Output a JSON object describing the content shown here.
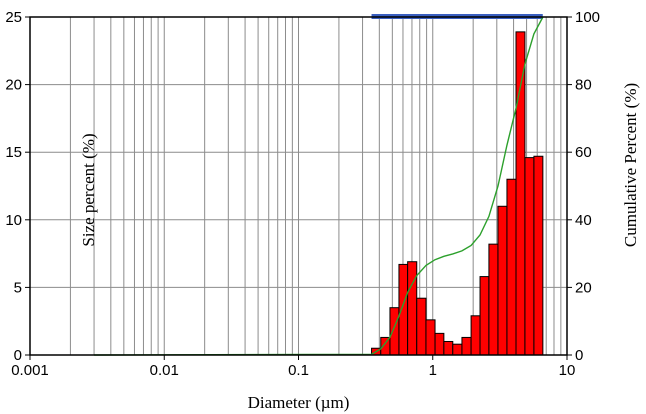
{
  "chart_data": {
    "type": "bar",
    "xlabel": "Diameter (µm)",
    "ylabel": "Size percent (%)",
    "y2label": "Cumulative Percent (%)",
    "xscale": "log",
    "xlim": [
      0.001,
      10
    ],
    "ylim": [
      0,
      25
    ],
    "y2lim": [
      0,
      100
    ],
    "x_ticks": [
      "0.001",
      "0.01",
      "0.1",
      "1",
      "10"
    ],
    "y_ticks": [
      "0",
      "5",
      "10",
      "15",
      "20",
      "25"
    ],
    "y2_ticks": [
      "0",
      "20",
      "40",
      "60",
      "80",
      "100"
    ],
    "bar_color": "#ff0000",
    "line_color": "#2ca02c",
    "range_bar_color": "#3a5fc0",
    "range_bar": [
      0.35,
      6.6
    ],
    "bins": [
      {
        "x0": 0.35,
        "x1": 0.41,
        "value": 0.5
      },
      {
        "x0": 0.41,
        "x1": 0.48,
        "value": 1.3
      },
      {
        "x0": 0.48,
        "x1": 0.56,
        "value": 3.5
      },
      {
        "x0": 0.56,
        "x1": 0.65,
        "value": 6.7
      },
      {
        "x0": 0.65,
        "x1": 0.76,
        "value": 6.9
      },
      {
        "x0": 0.76,
        "x1": 0.89,
        "value": 4.2
      },
      {
        "x0": 0.89,
        "x1": 1.04,
        "value": 2.6
      },
      {
        "x0": 1.04,
        "x1": 1.21,
        "value": 1.6
      },
      {
        "x0": 1.21,
        "x1": 1.41,
        "value": 1.0
      },
      {
        "x0": 1.41,
        "x1": 1.65,
        "value": 0.8
      },
      {
        "x0": 1.65,
        "x1": 1.93,
        "value": 1.3
      },
      {
        "x0": 1.93,
        "x1": 2.25,
        "value": 2.9
      },
      {
        "x0": 2.25,
        "x1": 2.62,
        "value": 5.8
      },
      {
        "x0": 2.62,
        "x1": 3.06,
        "value": 8.2
      },
      {
        "x0": 3.06,
        "x1": 3.57,
        "value": 11.0
      },
      {
        "x0": 3.57,
        "x1": 4.17,
        "value": 13.0
      },
      {
        "x0": 4.17,
        "x1": 4.86,
        "value": 23.9
      },
      {
        "x0": 4.86,
        "x1": 5.67,
        "value": 14.6
      },
      {
        "x0": 5.67,
        "x1": 6.61,
        "value": 14.7
      }
    ],
    "cumulative": {
      "x": [
        0.003,
        0.35,
        0.41,
        0.48,
        0.56,
        0.65,
        0.76,
        0.89,
        1.04,
        1.21,
        1.41,
        1.65,
        1.93,
        2.25,
        2.62,
        3.06,
        3.57,
        4.17,
        4.86,
        5.67,
        6.61
      ],
      "y": [
        0,
        0.2,
        1.8,
        5.3,
        11.5,
        18.5,
        23.5,
        26.5,
        28.2,
        29.2,
        29.9,
        30.8,
        32.4,
        35.5,
        41.0,
        50.0,
        62.0,
        73.0,
        86.0,
        95.0,
        100
      ]
    }
  }
}
